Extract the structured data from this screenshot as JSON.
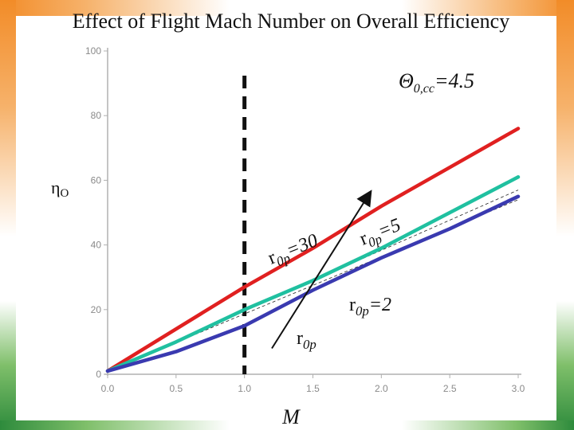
{
  "chart_data": {
    "type": "line",
    "title": "Effect of Flight Mach Number on  Overall Efficiency",
    "xlabel": "M",
    "ylabel": "ηO",
    "annotation": "Θ0,cc=4.5",
    "xlim": [
      0.0,
      3.0
    ],
    "ylim": [
      0,
      100
    ],
    "x_ticks": [
      "0.0",
      "0.5",
      "1.0",
      "1.5",
      "2.0",
      "2.5",
      "3.0"
    ],
    "y_ticks": [
      "100",
      "80",
      "60",
      "40",
      "20",
      "0"
    ],
    "series": [
      {
        "label": "r0p=30",
        "label_prefix": "r",
        "label_sub": "0p",
        "label_suffix": "=30",
        "color": "#e02020",
        "x": [
          0.0,
          0.5,
          1.0,
          1.5,
          2.0,
          2.5,
          3.0
        ],
        "y": [
          1,
          14,
          27,
          39,
          52,
          64,
          76
        ]
      },
      {
        "label": "r0p=5",
        "label_prefix": "r",
        "label_sub": "0p",
        "label_suffix": "=5",
        "color": "#20c0a0",
        "x": [
          0.0,
          0.5,
          1.0,
          1.5,
          2.0,
          2.5,
          3.0
        ],
        "y": [
          1,
          10,
          20,
          29,
          39,
          50,
          61
        ]
      },
      {
        "label": "r0p=2",
        "label_prefix": "r",
        "label_sub": "0p",
        "label_suffix": "=2",
        "color": "#3a3ab0",
        "x": [
          0.0,
          0.5,
          1.0,
          1.5,
          2.0,
          2.5,
          3.0
        ],
        "y": [
          1,
          7,
          15,
          26,
          36,
          45,
          55
        ]
      }
    ],
    "reference_line_x": 1.0,
    "arrow_label": "r0p",
    "arrow_label_prefix": "r",
    "arrow_label_sub": "0p"
  }
}
